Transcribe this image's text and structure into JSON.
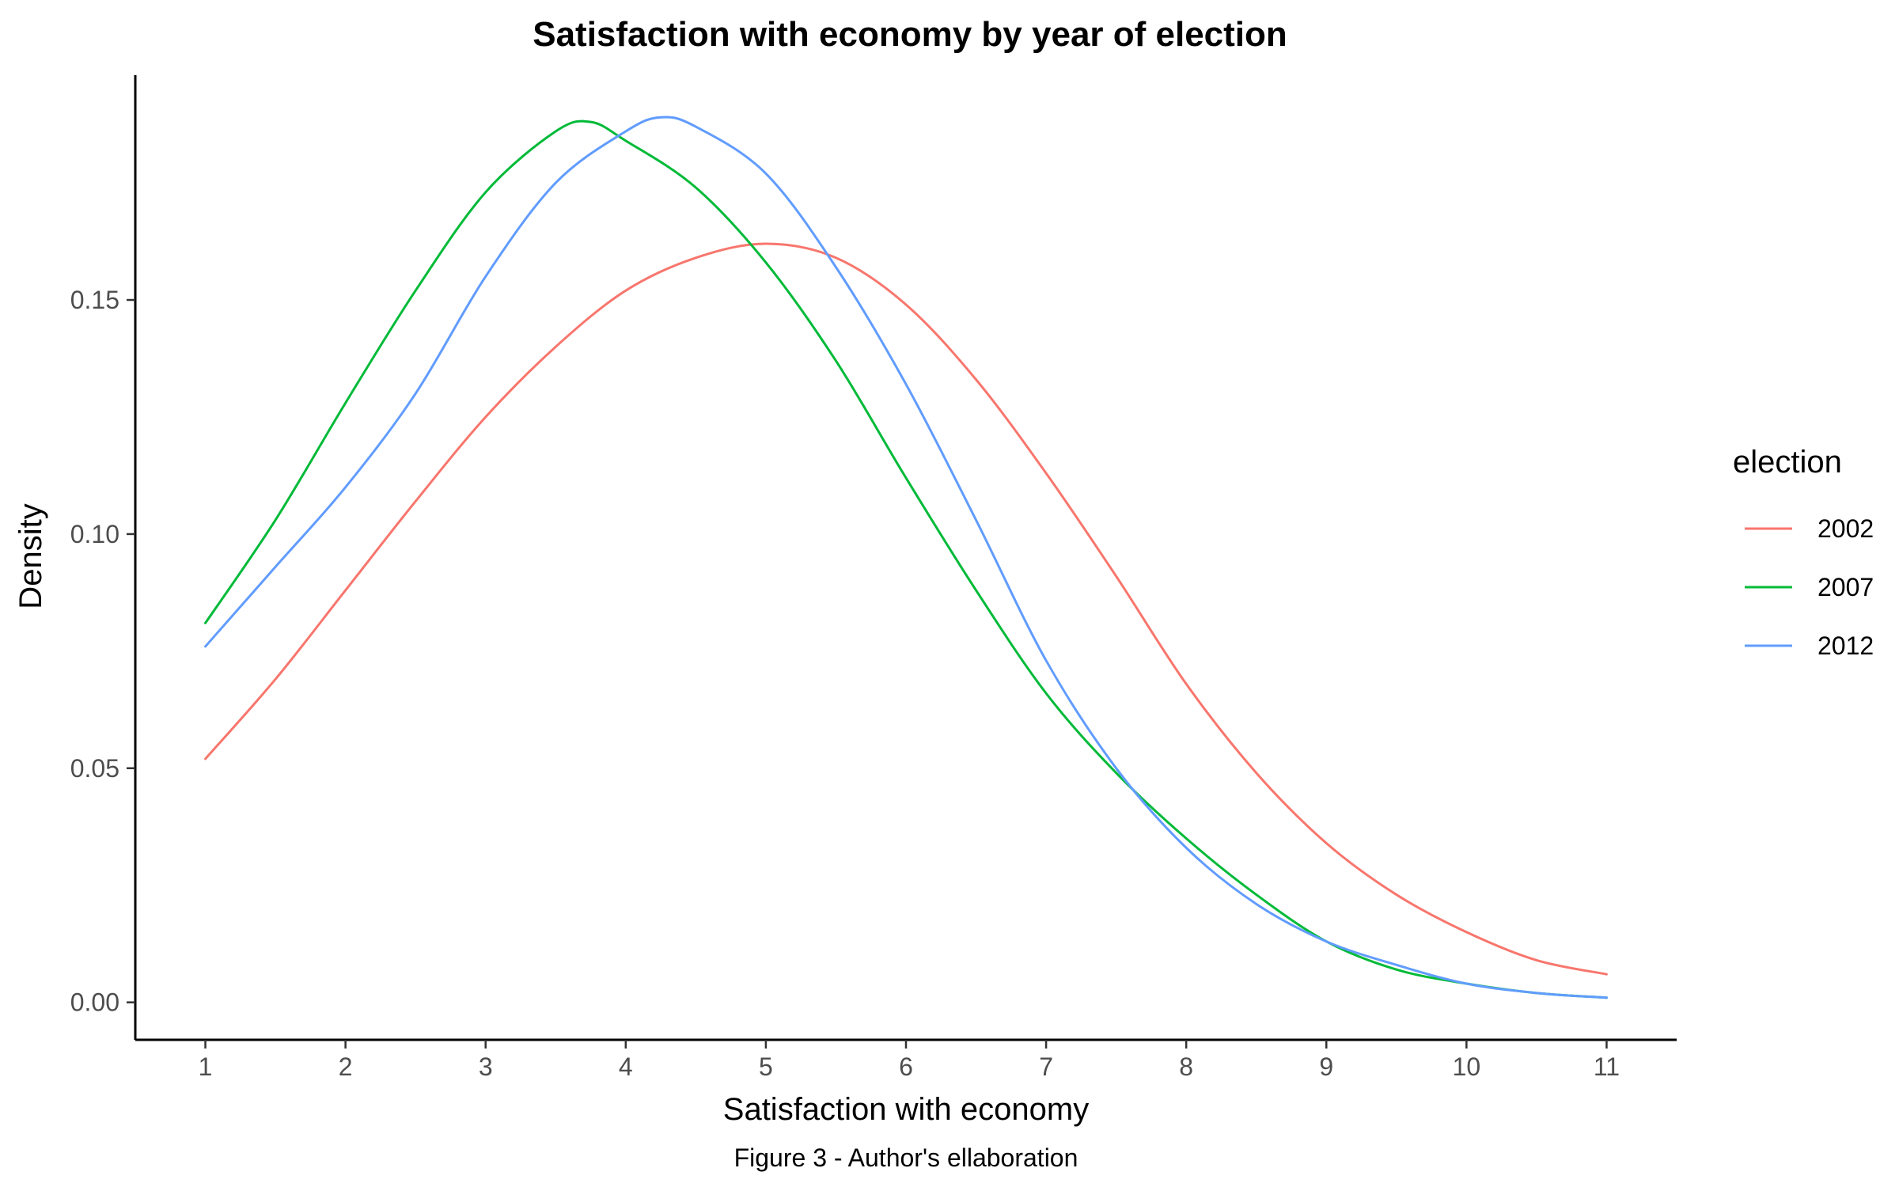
{
  "chart_data": {
    "type": "line",
    "title": "Satisfaction with economy by year of election",
    "xlabel": "Satisfaction with economy",
    "ylabel": "Density",
    "caption": "Figure 3 - Author's ellaboration",
    "xlim": [
      0.5,
      11.5
    ],
    "ylim": [
      -0.008,
      0.198
    ],
    "x_ticks": [
      1,
      2,
      3,
      4,
      5,
      6,
      7,
      8,
      9,
      10,
      11
    ],
    "y_ticks": [
      0,
      0.05,
      0.1,
      0.15
    ],
    "y_tick_labels": [
      "0.00",
      "0.05",
      "0.10",
      "0.15"
    ],
    "grid": false,
    "legend": {
      "title": "election",
      "placement": "right"
    },
    "series": [
      {
        "name": "2002",
        "color": "#F8766D",
        "points": [
          [
            1,
            0.052
          ],
          [
            1.5,
            0.069
          ],
          [
            2,
            0.088
          ],
          [
            2.5,
            0.107
          ],
          [
            3,
            0.125
          ],
          [
            3.5,
            0.14
          ],
          [
            4,
            0.152
          ],
          [
            4.5,
            0.159
          ],
          [
            5,
            0.162
          ],
          [
            5.5,
            0.159
          ],
          [
            6,
            0.149
          ],
          [
            6.5,
            0.133
          ],
          [
            7,
            0.113
          ],
          [
            7.5,
            0.091
          ],
          [
            8,
            0.068
          ],
          [
            8.5,
            0.049
          ],
          [
            9,
            0.034
          ],
          [
            9.5,
            0.023
          ],
          [
            10,
            0.015
          ],
          [
            10.5,
            0.009
          ],
          [
            11,
            0.006
          ]
        ]
      },
      {
        "name": "2007",
        "color": "#00BA38",
        "points": [
          [
            1,
            0.081
          ],
          [
            1.5,
            0.103
          ],
          [
            2,
            0.128
          ],
          [
            2.5,
            0.152
          ],
          [
            3,
            0.173
          ],
          [
            3.5,
            0.186
          ],
          [
            3.75,
            0.188
          ],
          [
            4,
            0.184
          ],
          [
            4.5,
            0.174
          ],
          [
            5,
            0.158
          ],
          [
            5.5,
            0.137
          ],
          [
            6,
            0.112
          ],
          [
            6.5,
            0.088
          ],
          [
            7,
            0.066
          ],
          [
            7.5,
            0.049
          ],
          [
            8,
            0.035
          ],
          [
            8.5,
            0.023
          ],
          [
            9,
            0.013
          ],
          [
            9.5,
            0.007
          ],
          [
            10,
            0.004
          ],
          [
            10.5,
            0.002
          ],
          [
            11,
            0.001
          ]
        ]
      },
      {
        "name": "2012",
        "color": "#619CFF",
        "points": [
          [
            1,
            0.076
          ],
          [
            1.5,
            0.093
          ],
          [
            2,
            0.11
          ],
          [
            2.5,
            0.13
          ],
          [
            3,
            0.155
          ],
          [
            3.5,
            0.175
          ],
          [
            4,
            0.186
          ],
          [
            4.25,
            0.189
          ],
          [
            4.5,
            0.187
          ],
          [
            5,
            0.177
          ],
          [
            5.5,
            0.157
          ],
          [
            6,
            0.132
          ],
          [
            6.5,
            0.103
          ],
          [
            7,
            0.073
          ],
          [
            7.5,
            0.05
          ],
          [
            8,
            0.033
          ],
          [
            8.5,
            0.021
          ],
          [
            9,
            0.013
          ],
          [
            9.5,
            0.008
          ],
          [
            10,
            0.004
          ],
          [
            10.5,
            0.002
          ],
          [
            11,
            0.001
          ]
        ]
      }
    ]
  }
}
